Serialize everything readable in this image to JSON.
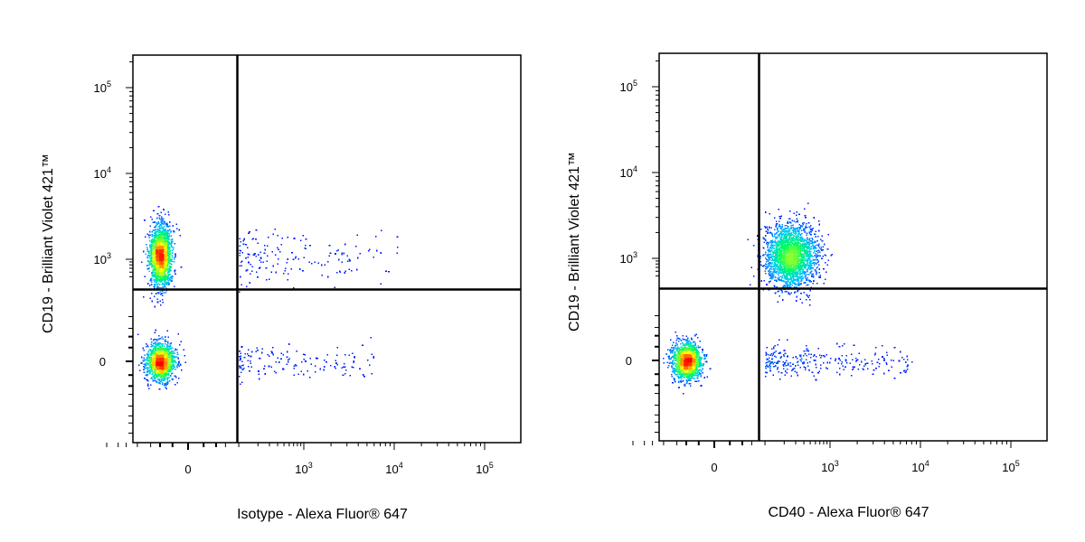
{
  "chart_data": [
    {
      "type": "scatter",
      "xlabel": "Isotype - Alexa Fluor® 647",
      "ylabel": "CD19 - Brilliant Violet 421™",
      "x_scale": "biexponential",
      "y_scale": "biexponential",
      "xlim": [
        -300,
        100000
      ],
      "ylim": [
        -300,
        200000
      ],
      "x_ticks": [
        {
          "base": "0",
          "exp": "",
          "value": 0
        },
        {
          "base": "10",
          "exp": "3",
          "value": 1000
        },
        {
          "base": "10",
          "exp": "4",
          "value": 10000
        },
        {
          "base": "10",
          "exp": "5",
          "value": 100000
        }
      ],
      "y_ticks": [
        {
          "base": "0",
          "exp": "",
          "value": 0
        },
        {
          "base": "10",
          "exp": "3",
          "value": 1000
        },
        {
          "base": "10",
          "exp": "4",
          "value": 10000
        },
        {
          "base": "10",
          "exp": "5",
          "value": 100000
        }
      ],
      "quadrant_gate": {
        "x": 80,
        "y": 300
      },
      "populations": [
        {
          "name": "",
          "x_center": -40,
          "y_center": 1100,
          "count": 1900
        },
        {
          "name": "",
          "x_center": -40,
          "y_center": 0,
          "count": 1500
        },
        {
          "name": "",
          "x_range": [
            100,
            12000
          ],
          "y_range": [
            450,
            2500
          ],
          "count": 160
        },
        {
          "name": "",
          "x_range": [
            100,
            6000
          ],
          "y_range": [
            -150,
            150
          ],
          "count": 140
        }
      ],
      "grid": false,
      "colormap": [
        "#0000ff",
        "#00c8ff",
        "#00ff60",
        "#ffff00",
        "#ff0000"
      ]
    },
    {
      "type": "scatter",
      "xlabel": "CD40 - Alexa Fluor® 647",
      "ylabel": "CD19 - Brilliant Violet 421™",
      "x_scale": "biexponential",
      "y_scale": "biexponential",
      "xlim": [
        -300,
        100000
      ],
      "ylim": [
        -300,
        200000
      ],
      "x_ticks": [
        {
          "base": "0",
          "exp": "",
          "value": 0
        },
        {
          "base": "10",
          "exp": "3",
          "value": 1000
        },
        {
          "base": "10",
          "exp": "4",
          "value": 10000
        },
        {
          "base": "10",
          "exp": "5",
          "value": 100000
        }
      ],
      "y_ticks": [
        {
          "base": "0",
          "exp": "",
          "value": 0
        },
        {
          "base": "10",
          "exp": "3",
          "value": 1000
        },
        {
          "base": "10",
          "exp": "4",
          "value": 10000
        },
        {
          "base": "10",
          "exp": "5",
          "value": 100000
        }
      ],
      "quadrant_gate": {
        "x": 80,
        "y": 300
      },
      "populations": [
        {
          "name": "",
          "x_center": 250,
          "y_center": 1100,
          "count": 2300
        },
        {
          "name": "",
          "x_center": -40,
          "y_center": 0,
          "count": 1600
        },
        {
          "name": "",
          "x_range": [
            100,
            8000
          ],
          "y_range": [
            -150,
            150
          ],
          "count": 260
        }
      ],
      "grid": false,
      "colormap": [
        "#0000ff",
        "#00c8ff",
        "#00ff60",
        "#ffff00",
        "#ff0000"
      ]
    }
  ]
}
